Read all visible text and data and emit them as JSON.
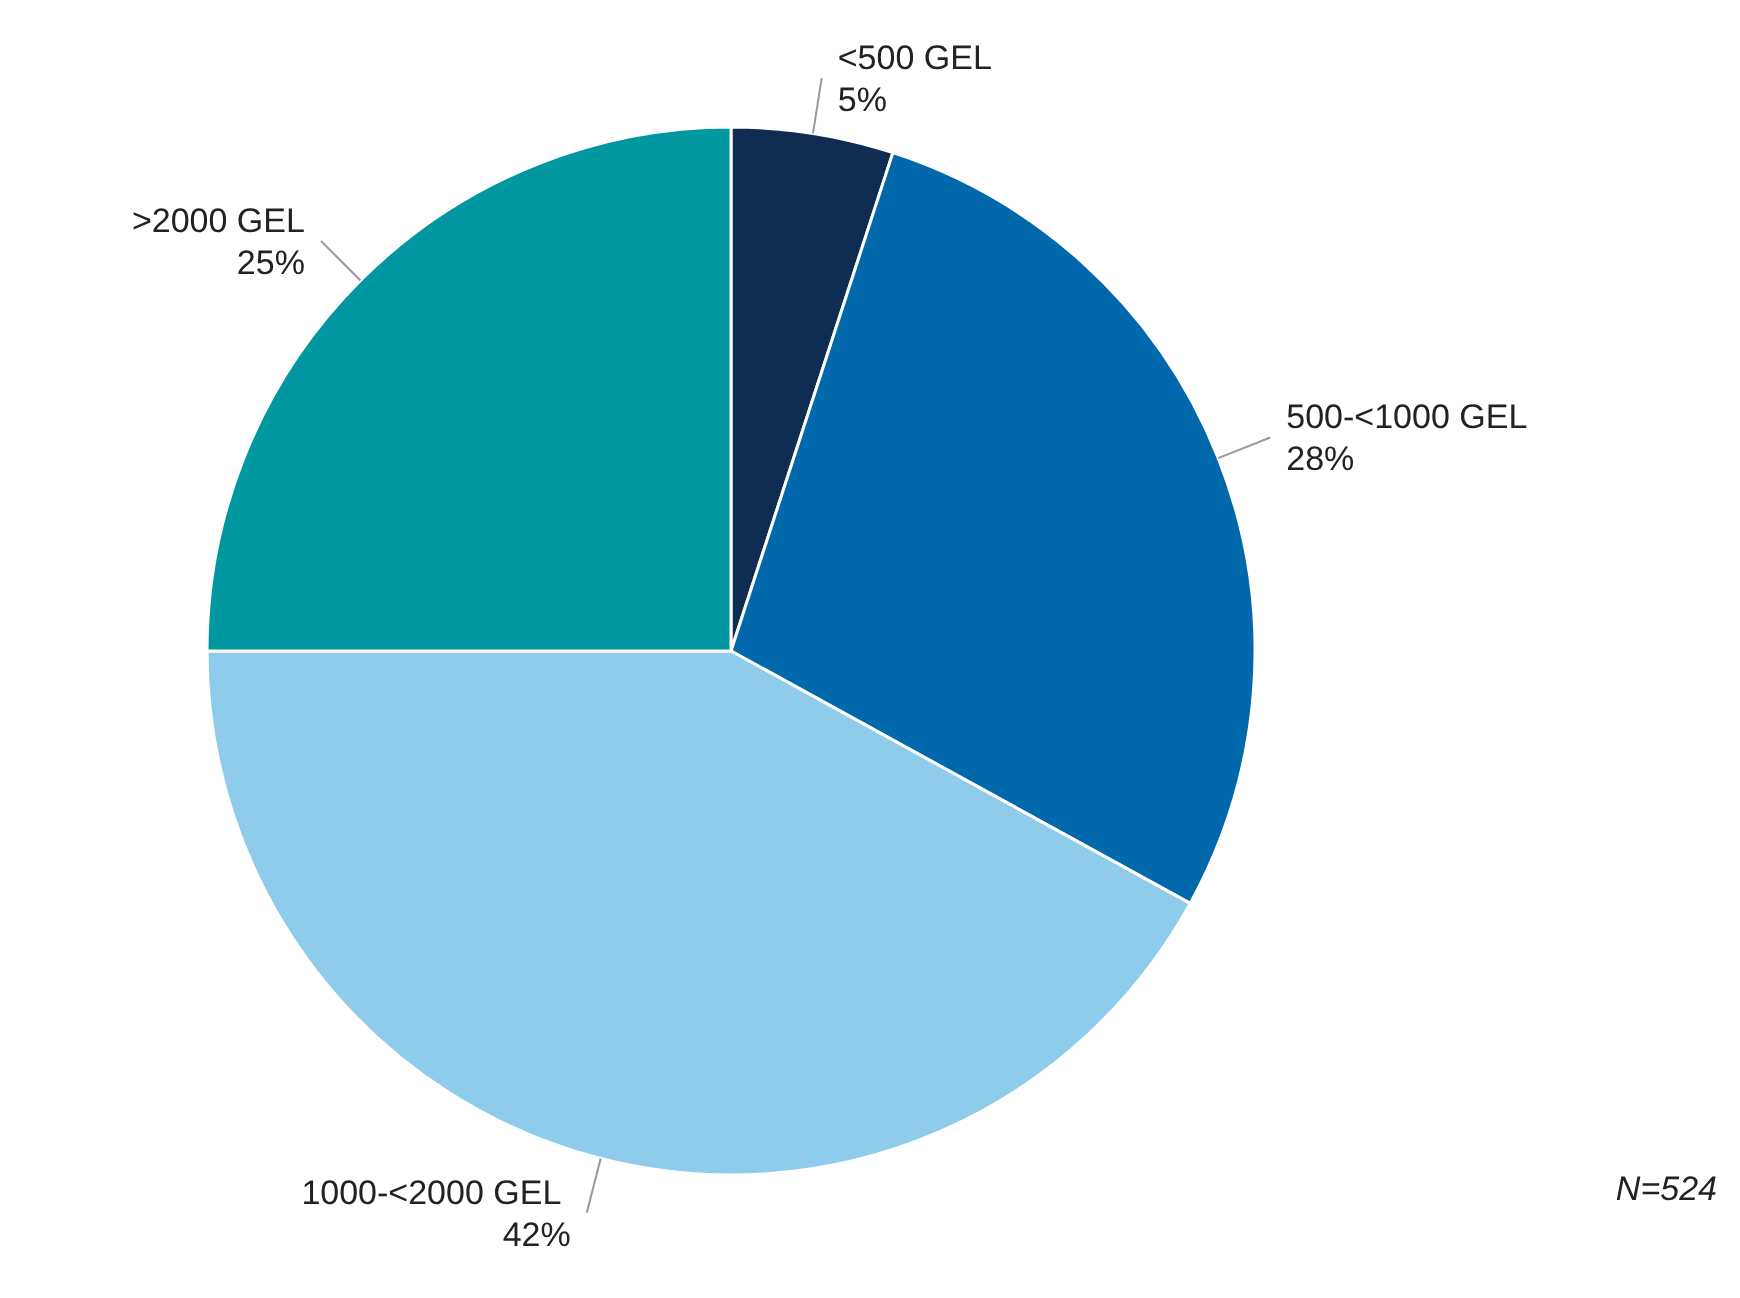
{
  "chart_data": {
    "type": "pie",
    "categories": [
      "<500 GEL",
      "500-<1000  GEL",
      "1000-<2000  GEL",
      ">2000 GEL"
    ],
    "values": [
      5,
      28,
      42,
      25
    ],
    "value_labels": [
      "5%",
      "28%",
      "42%",
      "25%"
    ],
    "colors": [
      "#0f2d52",
      "#0068ab",
      "#8fcbeb",
      "#0097a1"
    ],
    "annotations": [
      "N=524"
    ]
  }
}
